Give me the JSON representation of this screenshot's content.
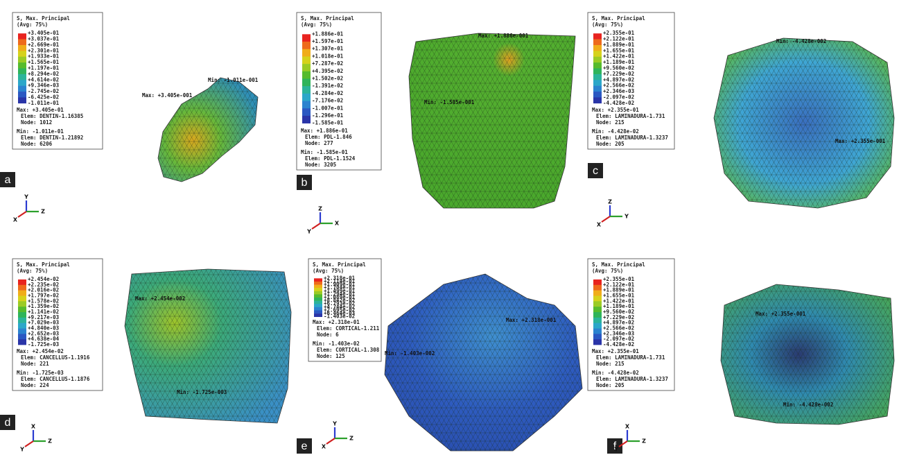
{
  "panels": [
    {
      "label": "a",
      "legend": {
        "title": "S, Max. Principal",
        "subtitle": "(Avg: 75%)",
        "ticks": [
          "+3.405e-01",
          "+3.037e-01",
          "+2.669e-01",
          "+2.301e-01",
          "+1.933e-01",
          "+1.565e-01",
          "+1.197e-01",
          "+8.294e-02",
          "+4.614e-02",
          "+9.346e-03",
          "-2.745e-02",
          "-6.425e-02",
          "-1.011e-01"
        ],
        "info": [
          "Max: +3.405e-01",
          "Elem: DENTIN-1.16385",
          "Node: 1012",
          "Min: -1.011e-01",
          "Elem: DENTIN-1.21892",
          "Node: 6206"
        ]
      },
      "annotations": [
        "Max: +3.405e-001",
        "Min: -1.011e-001"
      ],
      "triad": [
        "Y",
        "Z",
        "X"
      ]
    },
    {
      "label": "b",
      "legend": {
        "title": "S, Max. Principal",
        "subtitle": "(Avg: 75%)",
        "ticks": [
          "+1.886e-01",
          "+1.597e-01",
          "+1.307e-01",
          "+1.018e-01",
          "+7.287e-02",
          "+4.395e-02",
          "+1.502e-02",
          "-1.391e-02",
          "-4.284e-02",
          "-7.176e-02",
          "-1.007e-01",
          "-1.296e-01",
          "-1.585e-01"
        ],
        "info": [
          "Max: +1.886e-01",
          "Elem: PDL-1.846",
          "Node: 277",
          "Min: -1.585e-01",
          "Elem: PDL-1.1524",
          "Node: 3205"
        ]
      },
      "annotations": [
        "Max: +1.886e-001",
        "Min: -1.585e-001"
      ],
      "triad": [
        "Z",
        "X",
        "Y"
      ]
    },
    {
      "label": "c",
      "legend": {
        "title": "S, Max. Principal",
        "subtitle": "(Avg: 75%)",
        "ticks": [
          "+2.355e-01",
          "+2.122e-01",
          "+1.889e-01",
          "+1.655e-01",
          "+1.422e-01",
          "+1.189e-01",
          "+9.560e-02",
          "+7.229e-02",
          "+4.897e-02",
          "+2.566e-02",
          "+2.346e-03",
          "-2.097e-02",
          "-4.428e-02"
        ],
        "info": [
          "Max: +2.355e-01",
          "Elem: LAMINADURA-1.731",
          "Node: 215",
          "Min: -4.428e-02",
          "Elem: LAMINADURA-1.3237",
          "Node: 205"
        ]
      },
      "annotations": [
        "Min: -4.428e-002",
        "Max: +2.355e-001"
      ],
      "triad": [
        "Z",
        "Y",
        "X"
      ]
    },
    {
      "label": "d",
      "legend": {
        "title": "S, Max. Principal",
        "subtitle": "(Avg: 75%)",
        "ticks": [
          "+2.454e-02",
          "+2.235e-02",
          "+2.016e-02",
          "+1.797e-02",
          "+1.578e-02",
          "+1.359e-02",
          "+1.141e-02",
          "+9.217e-03",
          "+7.029e-03",
          "+4.840e-03",
          "+2.652e-03",
          "+4.638e-04",
          "-1.725e-03"
        ],
        "info": [
          "Max: +2.454e-02",
          "Elem: CANCELLUS-1.1916",
          "Node: 221",
          "Min: -1.725e-03",
          "Elem: CANCELLUS-1.1876",
          "Node: 224"
        ]
      },
      "annotations": [
        "Max: +2.454e-002",
        "Min: -1.725e-003"
      ],
      "triad": [
        "X",
        "Z",
        "Y"
      ]
    },
    {
      "label": "e",
      "legend": {
        "title": "S, Max. Principal",
        "subtitle": "(Avg: 75%)",
        "ticks": [
          "+2.318e-01",
          "+2.114e-01",
          "+1.909e-01",
          "+1.704e-01",
          "+1.499e-01",
          "+1.294e-01",
          "+1.089e-01",
          "+8.842e-02",
          "+6.793e-02",
          "+4.744e-02",
          "+2.695e-02",
          "+6.464e-03",
          "-1.403e-02"
        ],
        "info": [
          "Max: +2.318e-01",
          "Elem: CORTICAL-1.211",
          "Node: 6",
          "Min: -1.403e-02",
          "Elem: CORTICAL-1.308",
          "Node: 125"
        ]
      },
      "annotations": [
        "Max: +2.318e-001",
        "Min: -1.403e-002"
      ],
      "triad": [
        "Y",
        "Z",
        "X"
      ]
    },
    {
      "label": "f",
      "legend": {
        "title": "S, Max. Principal",
        "subtitle": "(Avg: 75%)",
        "ticks": [
          "+2.355e-01",
          "+2.122e-01",
          "+1.889e-01",
          "+1.655e-01",
          "+1.422e-01",
          "+1.189e-01",
          "+9.560e-02",
          "+7.229e-02",
          "+4.897e-02",
          "+2.566e-02",
          "+2.346e-03",
          "-2.097e-02",
          "-4.428e-02"
        ],
        "info": [
          "Max: +2.355e-01",
          "Elem: LAMINADURA-1.731",
          "Node: 215",
          "Min: -4.428e-02",
          "Elem: LAMINADURA-1.3237",
          "Node: 205"
        ]
      },
      "annotations": [
        "Max: +2.355e-001",
        "Min: -4.428e-002"
      ],
      "triad": [
        "X",
        "Z",
        "Y"
      ]
    }
  ]
}
